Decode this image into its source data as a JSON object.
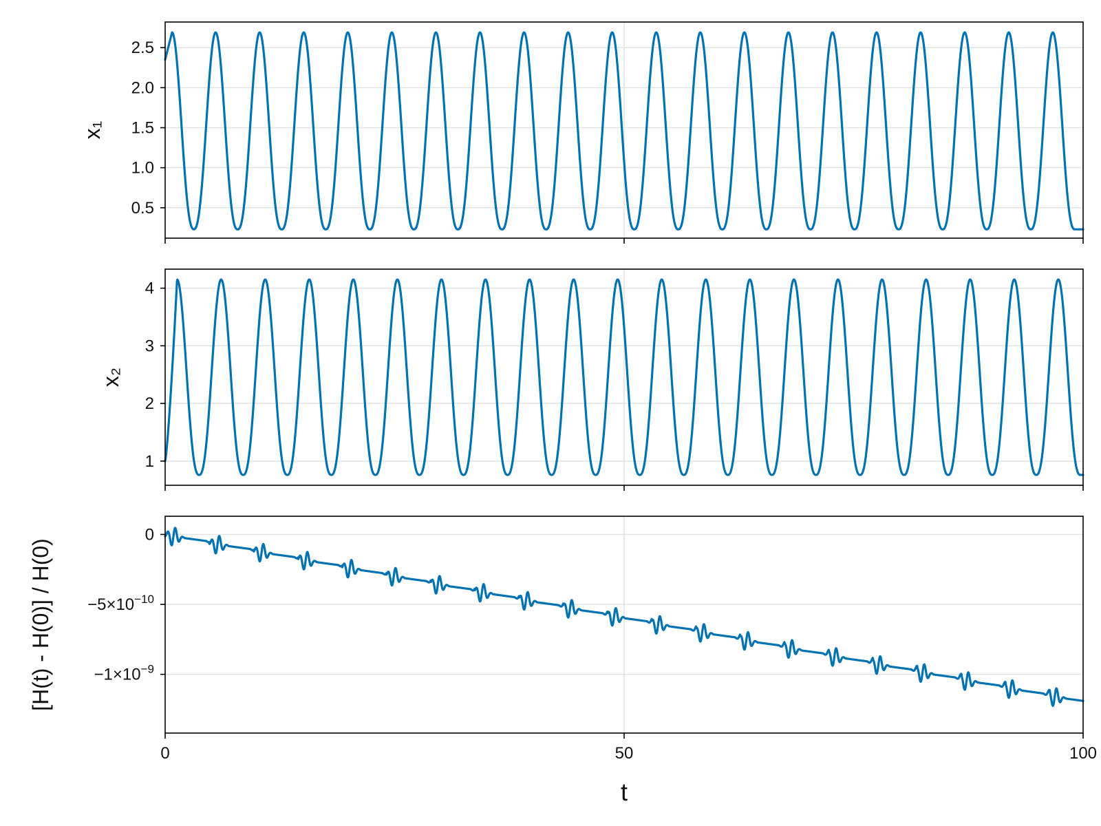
{
  "colors": {
    "series": "#0072b2"
  },
  "chart_data": [
    {
      "type": "line",
      "ylabel": "x₁",
      "xlim": [
        0,
        100
      ],
      "ylim": [
        0.12,
        2.82
      ],
      "yticks": [
        0.5,
        1.0,
        1.5,
        2.0,
        2.5
      ],
      "ytick_labels": [
        "0.5",
        "1.0",
        "1.5",
        "2.0",
        "2.5"
      ],
      "xticks": [
        0,
        50,
        100
      ],
      "grid": true,
      "curve": {
        "kind": "periodic",
        "period": 4.82,
        "min": 0.23,
        "max": 2.69,
        "start_value": 2.35,
        "peak_t": [
          0.75,
          5.5,
          10.3,
          15.1,
          19.9,
          24.7,
          29.5,
          34.3,
          39.1,
          43.9,
          48.7,
          53.5,
          58.3,
          63.1,
          67.9,
          72.7,
          77.5,
          82.3,
          87.1,
          91.9,
          96.7
        ]
      }
    },
    {
      "type": "line",
      "ylabel": "x₂",
      "xlim": [
        0,
        100
      ],
      "ylim": [
        0.58,
        4.33
      ],
      "yticks": [
        1,
        2,
        3,
        4
      ],
      "ytick_labels": [
        "1",
        "2",
        "3",
        "4"
      ],
      "xticks": [
        0,
        50,
        100
      ],
      "grid": true,
      "curve": {
        "kind": "periodic",
        "period": 4.82,
        "min": 0.76,
        "max": 4.15,
        "start_value": 1.0,
        "peak_t": [
          1.3,
          6.1,
          10.9,
          15.7,
          20.5,
          25.3,
          30.1,
          34.9,
          39.7,
          44.5,
          49.3,
          54.1,
          58.9,
          63.7,
          68.5,
          73.3,
          78.1,
          82.9,
          87.7,
          92.5,
          97.3
        ],
        "end_value": 1.1
      }
    },
    {
      "type": "line",
      "ylabel": "[H(t) - H(0)] / H(0)",
      "xlabel": "t",
      "xlim": [
        0,
        100
      ],
      "ylim": [
        -1.42e-09,
        1.3e-10
      ],
      "yticks": [
        0,
        -5e-10,
        -1e-09
      ],
      "ytick_labels": [
        {
          "base": "0",
          "exp": ""
        },
        {
          "base": "−5×10",
          "exp": "−10"
        },
        {
          "base": "−1×10",
          "exp": "−9"
        }
      ],
      "xticks": [
        0,
        50,
        100
      ],
      "xtick_labels": [
        "0",
        "50",
        "100"
      ],
      "grid": true,
      "curve": {
        "kind": "staircase-drift",
        "period": 4.82,
        "start_value": 0.0,
        "end_value": -1.27e-09,
        "step": -6.1e-11,
        "wiggle_amplitude": 5e-11,
        "wiggle_t": [
          0.9,
          5.7,
          10.5,
          15.3,
          20.1,
          24.9,
          29.7,
          34.5,
          39.3,
          44.1,
          48.9,
          53.7,
          58.5,
          63.3,
          68.1,
          72.9,
          77.7,
          82.5,
          87.3,
          92.1,
          96.9
        ]
      }
    }
  ]
}
